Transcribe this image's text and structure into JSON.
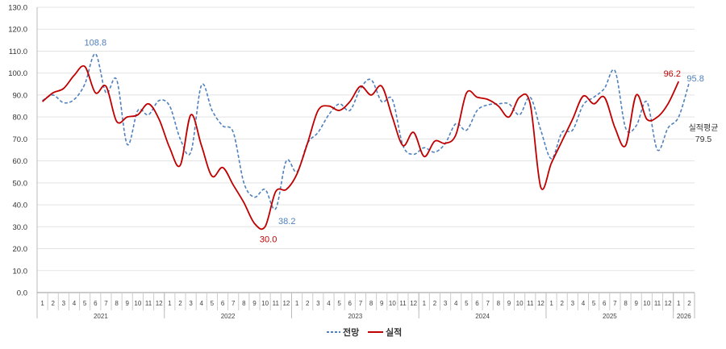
{
  "chart_data": {
    "type": "line",
    "title": "",
    "xlabel": "",
    "ylabel": "",
    "ylim": [
      0,
      130
    ],
    "yticks": [
      "0.0",
      "10.0",
      "20.0",
      "30.0",
      "40.0",
      "50.0",
      "60.0",
      "70.0",
      "80.0",
      "90.0",
      "100.0",
      "110.0",
      "120.0",
      "130.0"
    ],
    "grid": true,
    "legend": "bottom",
    "years": [
      {
        "label": "2021",
        "months": 12
      },
      {
        "label": "2022",
        "months": 12
      },
      {
        "label": "2023",
        "months": 12
      },
      {
        "label": "2024",
        "months": 12
      },
      {
        "label": "2025",
        "months": 12
      },
      {
        "label": "2026",
        "months": 2
      }
    ],
    "series": [
      {
        "name": "전망",
        "color": "#4f81bd",
        "style": "dashed",
        "values": [
          87.5,
          90,
          86.5,
          88,
          95,
          108.8,
          91,
          97,
          67.5,
          83,
          81,
          87.5,
          85,
          70,
          64,
          94.5,
          83,
          76,
          73,
          50,
          43.5,
          47,
          38.2,
          60,
          55,
          68,
          73,
          81,
          86,
          83,
          93,
          97,
          87,
          88,
          67,
          63,
          66,
          64,
          68,
          77,
          74,
          83,
          85.5,
          86,
          86,
          81,
          89,
          74,
          61,
          73,
          74,
          85.5,
          89,
          93,
          101,
          75,
          76,
          87,
          65,
          75,
          80,
          95.8
        ]
      },
      {
        "name": "실적",
        "color": "#c00000",
        "style": "solid",
        "values": [
          87,
          91,
          93,
          99,
          103,
          91,
          94,
          78,
          80,
          81,
          86,
          79,
          66,
          58,
          81,
          67,
          53,
          57,
          49,
          41,
          31.5,
          30,
          46,
          47,
          54,
          68,
          83,
          85,
          83,
          87,
          94,
          90,
          94,
          80,
          67,
          73,
          62,
          69,
          68,
          72,
          91,
          89,
          88,
          85,
          80,
          89,
          86,
          48,
          59,
          69,
          79,
          89.5,
          86,
          89,
          75,
          67,
          90,
          79,
          80,
          86,
          96.2
        ]
      }
    ],
    "annotations": [
      {
        "text": "108.8",
        "series": 0,
        "index": 5,
        "color": "#4f81bd"
      },
      {
        "text": "38.2",
        "series": 0,
        "index": 22,
        "color": "#4f81bd"
      },
      {
        "text": "95.8",
        "series": 0,
        "index": 61,
        "color": "#4f81bd"
      },
      {
        "text": "30.0",
        "series": 1,
        "index": 21,
        "color": "#c00000"
      },
      {
        "text": "96.2",
        "series": 1,
        "index": 60,
        "color": "#c00000"
      }
    ],
    "average": {
      "label": "실적평균",
      "value": "79.5"
    }
  }
}
